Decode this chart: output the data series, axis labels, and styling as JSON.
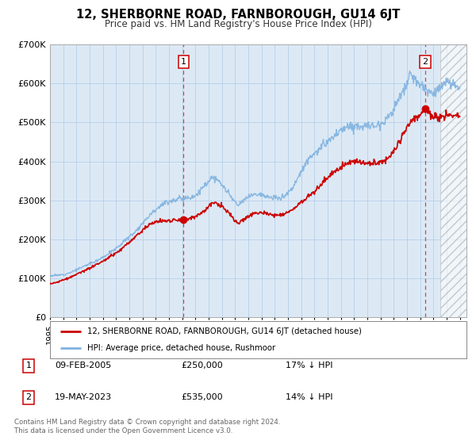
{
  "title": "12, SHERBORNE ROAD, FARNBOROUGH, GU14 6JT",
  "subtitle": "Price paid vs. HM Land Registry's House Price Index (HPI)",
  "background_color": "#ffffff",
  "plot_bg_color": "#dce9f5",
  "grid_color": "#b8cfe8",
  "hpi_color": "#7fb2e0",
  "price_color": "#cc0000",
  "ylim": [
    0,
    700000
  ],
  "xlim_start": 1995.0,
  "xlim_end": 2026.5,
  "hatch_start": 2024.5,
  "yticks": [
    0,
    100000,
    200000,
    300000,
    400000,
    500000,
    600000,
    700000
  ],
  "ytick_labels": [
    "£0",
    "£100K",
    "£200K",
    "£300K",
    "£400K",
    "£500K",
    "£600K",
    "£700K"
  ],
  "xticks": [
    1995,
    1996,
    1997,
    1998,
    1999,
    2000,
    2001,
    2002,
    2003,
    2004,
    2005,
    2006,
    2007,
    2008,
    2009,
    2010,
    2011,
    2012,
    2013,
    2014,
    2015,
    2016,
    2017,
    2018,
    2019,
    2020,
    2021,
    2022,
    2023,
    2024,
    2025,
    2026
  ],
  "legend_label_price": "12, SHERBORNE ROAD, FARNBOROUGH, GU14 6JT (detached house)",
  "legend_label_hpi": "HPI: Average price, detached house, Rushmoor",
  "sale1_x": 2005.11,
  "sale1_y": 250000,
  "sale1_label": "1",
  "sale1_date": "09-FEB-2005",
  "sale1_price": "£250,000",
  "sale1_hpi": "17% ↓ HPI",
  "sale2_x": 2023.38,
  "sale2_y": 535000,
  "sale2_label": "2",
  "sale2_date": "19-MAY-2023",
  "sale2_price": "£535,000",
  "sale2_hpi": "14% ↓ HPI",
  "footer": "Contains HM Land Registry data © Crown copyright and database right 2024.\nThis data is licensed under the Open Government Licence v3.0."
}
